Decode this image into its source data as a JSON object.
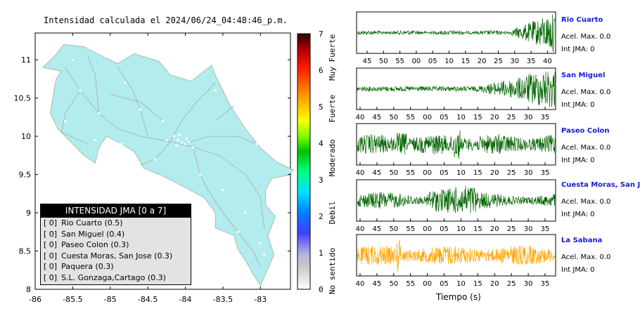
{
  "map": {
    "title": "Intensidad calculada el 2024/06/24_04:48:46_p.m.",
    "x_ticks": [
      "-86",
      "-85.5",
      "-85",
      "-84.5",
      "-84",
      "-83.5",
      "-83"
    ],
    "y_ticks": [
      "11",
      "10.5",
      "10",
      "9.5",
      "9",
      "8.5",
      "8"
    ],
    "land_color": "#b2ecec",
    "sea_color": "#ffffff"
  },
  "colorbar": {
    "ticks": [
      "0",
      "1",
      "2",
      "3",
      "4",
      "5",
      "6",
      "7"
    ],
    "labels": [
      "No sentido",
      "Debil",
      "Moderado",
      "Fuerte",
      "Muy Fuerte"
    ]
  },
  "legend": {
    "title": "INTENSIDAD JMA [0 a 7]",
    "rows": [
      {
        "jma": "[ 0]",
        "text": "Rio Cuarto (0.5)"
      },
      {
        "jma": "[ 0]",
        "text": "San Miguel (0.4)"
      },
      {
        "jma": "[ 0]",
        "text": "Paseo Colon (0.3)"
      },
      {
        "jma": "[ 0]",
        "text": "Cuesta Moras, San Jose (0.3)"
      },
      {
        "jma": "[ 0]",
        "text": "Paquera (0.3)"
      },
      {
        "jma": "[ 0]",
        "text": "S.L. Gonzaga,Cartago (0.3)"
      }
    ]
  },
  "stations": [
    {
      "name": "Rio Cuarto",
      "acel": "Acel. Max. 0.0",
      "jma": "Int JMA: 0",
      "color": "#006400",
      "ticks": [
        "45",
        "50",
        "55",
        "00",
        "05",
        "10",
        "15",
        "20",
        "25",
        "30",
        "35",
        "40"
      ]
    },
    {
      "name": "San Miguel",
      "acel": "Acel. Max. 0.0",
      "jma": "Int JMA: 0",
      "color": "#006400",
      "ticks": [
        "40",
        "45",
        "50",
        "55",
        "00",
        "05",
        "10",
        "15",
        "20",
        "25",
        "30",
        "35"
      ]
    },
    {
      "name": "Paseo Colon",
      "acel": "Acel. Max. 0.0",
      "jma": "Int JMA: 0",
      "color": "#006400",
      "ticks": [
        "40",
        "45",
        "50",
        "55",
        "00",
        "05",
        "10",
        "15",
        "20",
        "25",
        "30",
        "35"
      ]
    },
    {
      "name": "Cuesta Moras, San Jose",
      "acel": "Acel. Max. 0.0",
      "jma": "Int JMA: 0",
      "color": "#006400",
      "ticks": [
        "40",
        "45",
        "50",
        "55",
        "00",
        "05",
        "10",
        "15",
        "20",
        "25",
        "30",
        "35"
      ]
    },
    {
      "name": "La Sabana",
      "acel": "Acel. Max. 0.0",
      "jma": "Int JMA: 0",
      "color": "#ffa500",
      "ticks": [
        "40",
        "45",
        "50",
        "55",
        "00",
        "05",
        "10",
        "15",
        "20",
        "25",
        "30",
        "35"
      ]
    }
  ],
  "xlabel": "Tiempo (s)",
  "chart_data": [
    {
      "type": "heatmap",
      "title": "Intensidad calculada el 2024/06/24_04:48:46_p.m.",
      "xlabel": "",
      "ylabel": "",
      "xlim": [
        -86,
        -82.6
      ],
      "ylim": [
        8,
        11.35
      ],
      "colorbar_range": [
        0,
        7
      ],
      "colorbar_labels": [
        "No sentido",
        "Debil",
        "Moderado",
        "Fuerte",
        "Muy Fuerte"
      ],
      "legend_placement": "bottom-left",
      "stations": [
        {
          "name": "Rio Cuarto",
          "value": 0.5
        },
        {
          "name": "San Miguel",
          "value": 0.4
        },
        {
          "name": "Paseo Colon",
          "value": 0.3
        },
        {
          "name": "Cuesta Moras, San Jose",
          "value": 0.3
        },
        {
          "name": "Paquera",
          "value": 0.3
        },
        {
          "name": "S.L. Gonzaga,Cartago",
          "value": 0.3
        }
      ]
    },
    {
      "type": "line",
      "xlabel": "Tiempo (s)",
      "series": [
        {
          "name": "Rio Cuarto",
          "acel_max": 0.0,
          "int_jma": 0,
          "color": "#006400"
        },
        {
          "name": "San Miguel",
          "acel_max": 0.0,
          "int_jma": 0,
          "color": "#006400"
        },
        {
          "name": "Paseo Colon",
          "acel_max": 0.0,
          "int_jma": 0,
          "color": "#006400"
        },
        {
          "name": "Cuesta Moras, San Jose",
          "acel_max": 0.0,
          "int_jma": 0,
          "color": "#006400"
        },
        {
          "name": "La Sabana",
          "acel_max": 0.0,
          "int_jma": 0,
          "color": "#ffa500"
        }
      ]
    }
  ]
}
